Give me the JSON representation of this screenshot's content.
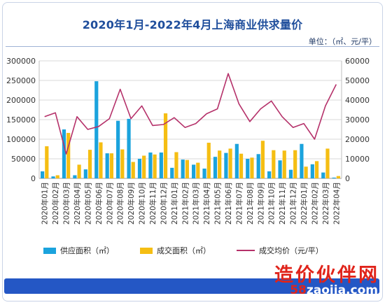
{
  "title": "2020年1月-2022年4月上海商业供求量价",
  "unit_label": "单位：（㎡、元/平）",
  "watermark": {
    "cn": "造价伙伴网",
    "url_prefix": "58",
    "url_rest": "zaojia.com"
  },
  "colors": {
    "supply": "#1ba3dd",
    "deal": "#f5be13",
    "price": "#b5316a",
    "title": "#1f4e9c",
    "bar": "#2457c5"
  },
  "legend": {
    "supply": "供应面积（㎡）",
    "deal": "成交面积（㎡）",
    "price": "成交均价（元/平）"
  },
  "chart_data": {
    "type": "bar",
    "categories": [
      "2020年01月",
      "2020年02月",
      "2020年03月",
      "2020年04月",
      "2020年05月",
      "2020年06月",
      "2020年07月",
      "2020年08月",
      "2020年09月",
      "2020年10月",
      "2020年11月",
      "2020年12月",
      "2021年01月",
      "2021年02月",
      "2021年03月",
      "2021年04月",
      "2021年05月",
      "2021年06月",
      "2021年07月",
      "2021年08月",
      "2021年09月",
      "2021年10月",
      "2021年11月",
      "2021年12月",
      "2022年01月",
      "2022年02月",
      "2022年03月",
      "2022年04月"
    ],
    "series": [
      {
        "name": "供应面积（㎡）",
        "type": "bar",
        "axis": "left",
        "values": [
          18000,
          5000,
          125000,
          8000,
          23000,
          248000,
          64000,
          147000,
          152000,
          50000,
          66000,
          66000,
          27000,
          48000,
          35000,
          25000,
          55000,
          65000,
          88000,
          50000,
          62000,
          18000,
          46000,
          22000,
          88000,
          36000,
          15000,
          2000
        ]
      },
      {
        "name": "成交面积（㎡）",
        "type": "bar",
        "axis": "left",
        "values": [
          82000,
          8000,
          116000,
          35000,
          73000,
          92000,
          64000,
          74000,
          42000,
          58000,
          61000,
          166000,
          67000,
          47000,
          40000,
          91000,
          71000,
          76000,
          63000,
          53000,
          96000,
          72000,
          71000,
          72000,
          30000,
          44000,
          76000,
          6000
        ]
      },
      {
        "name": "成交均价（元/平）",
        "type": "line",
        "axis": "right",
        "values": [
          31500,
          33500,
          12500,
          31500,
          25000,
          26500,
          30500,
          45500,
          30500,
          37000,
          27000,
          27500,
          31000,
          26000,
          28000,
          33000,
          35500,
          53500,
          38000,
          29000,
          35500,
          39500,
          31500,
          26000,
          28000,
          20000,
          37000,
          48000
        ]
      }
    ],
    "ylim_left": [
      0,
      300000
    ],
    "ylim_right": [
      0,
      60000
    ],
    "yticks_left": [
      "0",
      "50000",
      "100000",
      "150000",
      "200000",
      "250000",
      "300000"
    ],
    "yticks_right": [
      "0",
      "10000",
      "20000",
      "30000",
      "40000",
      "50000",
      "60000"
    ],
    "grid": true,
    "legend_position": "bottom"
  }
}
